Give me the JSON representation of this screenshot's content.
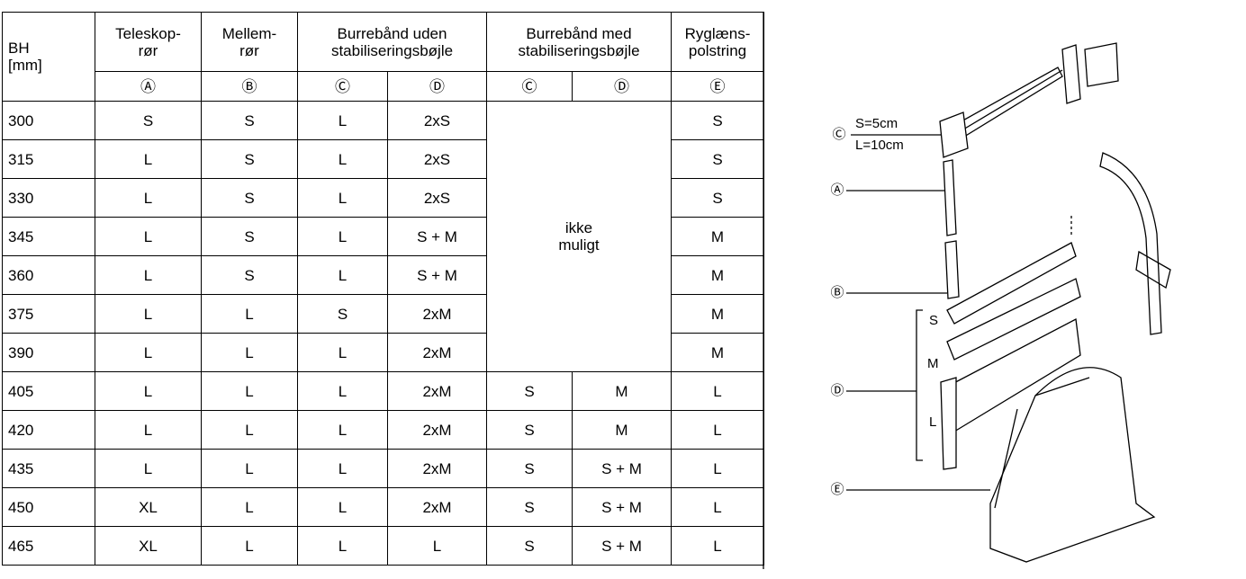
{
  "table": {
    "header": {
      "bh": [
        "BH",
        "[mm]"
      ],
      "columns": [
        [
          "Teleskop-",
          "rør"
        ],
        [
          "Mellem-",
          "rør"
        ],
        [
          "Burrebånd uden",
          "stabiliseringsbøjle"
        ],
        [
          "Burrebånd med",
          "stabiliseringsbøjle"
        ],
        [
          "Ryglæns-",
          "polstring"
        ]
      ],
      "letters": [
        "Ⓐ",
        "Ⓑ",
        "Ⓒ",
        "Ⓓ",
        "Ⓒ",
        "Ⓓ",
        "Ⓔ"
      ]
    },
    "merged_note": [
      "ikke",
      "muligt"
    ],
    "rows": [
      [
        "300",
        "S",
        "S",
        "L",
        "2xS",
        "S"
      ],
      [
        "315",
        "L",
        "S",
        "L",
        "2xS",
        "S"
      ],
      [
        "330",
        "L",
        "S",
        "L",
        "2xS",
        "S"
      ],
      [
        "345",
        "L",
        "S",
        "L",
        "S + M",
        "M"
      ],
      [
        "360",
        "L",
        "S",
        "L",
        "S + M",
        "M"
      ],
      [
        "375",
        "L",
        "L",
        "S",
        "2xM",
        "M"
      ],
      [
        "390",
        "L",
        "L",
        "L",
        "2xM",
        "M"
      ],
      [
        "405",
        "L",
        "L",
        "L",
        "2xM",
        "S",
        "M",
        "L"
      ],
      [
        "420",
        "L",
        "L",
        "L",
        "2xM",
        "S",
        "M",
        "L"
      ],
      [
        "435",
        "L",
        "L",
        "L",
        "2xM",
        "S",
        "S + M",
        "L"
      ],
      [
        "450",
        "XL",
        "L",
        "L",
        "2xM",
        "S",
        "S + M",
        "L"
      ],
      [
        "465",
        "XL",
        "L",
        "L",
        "L",
        "S",
        "S + M",
        "L"
      ]
    ]
  },
  "diagram": {
    "c_label": "Ⓒ",
    "c_sizes": [
      "S=5cm",
      "L=10cm"
    ],
    "a_label": "Ⓐ",
    "b_label": "Ⓑ",
    "d_label": "Ⓓ",
    "e_label": "Ⓔ",
    "d_sizes": [
      "S",
      "M",
      "L"
    ]
  }
}
